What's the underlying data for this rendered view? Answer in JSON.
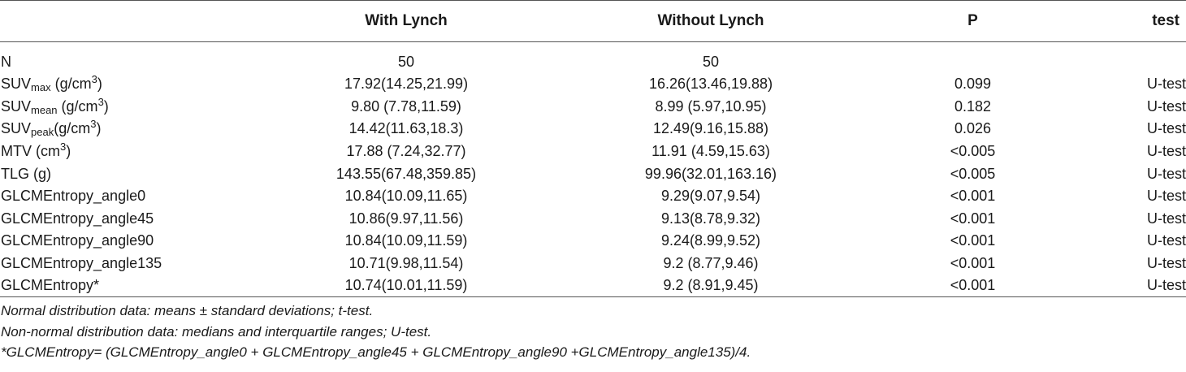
{
  "table": {
    "headers": {
      "label": "",
      "with_lynch": "With Lynch",
      "without_lynch": "Without Lynch",
      "p": "P",
      "test": "test"
    },
    "rows": [
      {
        "label": "N",
        "label_sub": "",
        "label_unit_pre": "",
        "label_sup": "",
        "label_unit_post": "",
        "with": "50",
        "without": "50",
        "p": "",
        "test": ""
      },
      {
        "label": "SUV",
        "label_sub": "max",
        "label_unit_pre": " (g/cm",
        "label_sup": "3",
        "label_unit_post": ")",
        "with": "17.92(14.25,21.99)",
        "without": "16.26(13.46,19.88)",
        "p": "0.099",
        "test": "U-test"
      },
      {
        "label": "SUV",
        "label_sub": "mean",
        "label_unit_pre": " (g/cm",
        "label_sup": "3",
        "label_unit_post": ")",
        "with": "9.80 (7.78,11.59)",
        "without": "8.99 (5.97,10.95)",
        "p": "0.182",
        "test": "U-test"
      },
      {
        "label": "SUV",
        "label_sub": "peak",
        "label_unit_pre": "(g/cm",
        "label_sup": "3",
        "label_unit_post": ")",
        "with": "14.42(11.63,18.3)",
        "without": "12.49(9.16,15.88)",
        "p": "0.026",
        "test": "U-test"
      },
      {
        "label": "MTV (cm",
        "label_sub": "",
        "label_unit_pre": "",
        "label_sup": "3",
        "label_unit_post": ")",
        "with": "17.88 (7.24,32.77)",
        "without": "11.91 (4.59,15.63)",
        "p": "<0.005",
        "test": "U-test"
      },
      {
        "label": "TLG (g)",
        "label_sub": "",
        "label_unit_pre": "",
        "label_sup": "",
        "label_unit_post": "",
        "with": "143.55(67.48,359.85)",
        "without": "99.96(32.01,163.16)",
        "p": "<0.005",
        "test": "U-test"
      },
      {
        "label": "GLCMEntropy_angle0",
        "label_sub": "",
        "label_unit_pre": "",
        "label_sup": "",
        "label_unit_post": "",
        "with": "10.84(10.09,11.65)",
        "without": "9.29(9.07,9.54)",
        "p": "<0.001",
        "test": "U-test"
      },
      {
        "label": "GLCMEntropy_angle45",
        "label_sub": "",
        "label_unit_pre": "",
        "label_sup": "",
        "label_unit_post": "",
        "with": "10.86(9.97,11.56)",
        "without": "9.13(8.78,9.32)",
        "p": "<0.001",
        "test": "U-test"
      },
      {
        "label": "GLCMEntropy_angle90",
        "label_sub": "",
        "label_unit_pre": "",
        "label_sup": "",
        "label_unit_post": "",
        "with": "10.84(10.09,11.59)",
        "without": "9.24(8.99,9.52)",
        "p": "<0.001",
        "test": "U-test"
      },
      {
        "label": "GLCMEntropy_angle135",
        "label_sub": "",
        "label_unit_pre": "",
        "label_sup": "",
        "label_unit_post": "",
        "with": "10.71(9.98,11.54)",
        "without": "9.2 (8.77,9.46)",
        "p": "<0.001",
        "test": "U-test"
      },
      {
        "label": "GLCMEntropy*",
        "label_sub": "",
        "label_unit_pre": "",
        "label_sup": "",
        "label_unit_post": "",
        "with": "10.74(10.01,11.59)",
        "without": "9.2 (8.91,9.45)",
        "p": "<0.001",
        "test": "U-test"
      }
    ]
  },
  "notes": [
    "Normal distribution data: means ± standard deviations; t-test.",
    "Non-normal distribution data: medians and interquartile ranges; U-test.",
    "*GLCMEntropy= (GLCMEntropy_angle0 + GLCMEntropy_angle45 + GLCMEntropy_angle90 +GLCMEntropy_angle135)/4."
  ]
}
